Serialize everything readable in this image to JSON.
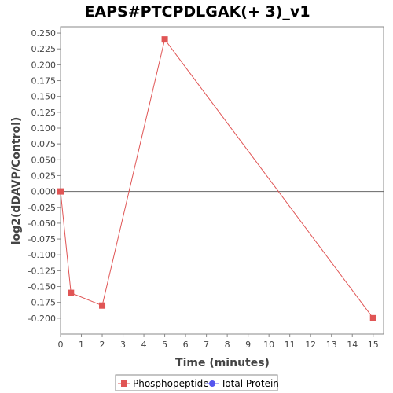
{
  "chart_data": {
    "type": "line",
    "title": "EAPS#PTCPDLGAK(+ 3)_v1",
    "xlabel": "Time (minutes)",
    "ylabel": "log2(dDAVP/Control)",
    "xlim": [
      0,
      15.5
    ],
    "ylim": [
      -0.225,
      0.26
    ],
    "x_ticks": [
      0,
      1,
      2,
      3,
      4,
      5,
      6,
      7,
      8,
      9,
      10,
      11,
      12,
      13,
      14,
      15
    ],
    "x_tick_labels": [
      "0",
      "1",
      "2",
      "3",
      "4",
      "5",
      "6",
      "7",
      "8",
      "9",
      "10",
      "11",
      "12",
      "13",
      "14",
      "15"
    ],
    "y_ticks": [
      0.25,
      0.225,
      0.2,
      0.175,
      0.15,
      0.125,
      0.1,
      0.075,
      0.05,
      0.025,
      0.0,
      -0.025,
      -0.05,
      -0.075,
      -0.1,
      -0.125,
      -0.15,
      -0.175,
      -0.2
    ],
    "y_tick_labels": [
      "0.250",
      "0.225",
      "0.200",
      "0.175",
      "0.150",
      "0.125",
      "0.100",
      "0.075",
      "0.050",
      "0.025",
      "0.000",
      "-0.025",
      "-0.050",
      "-0.075",
      "-0.100",
      "-0.125",
      "-0.150",
      "-0.175",
      "-0.200"
    ],
    "zero_line": true,
    "grid": false,
    "legend_position": "bottom",
    "series": [
      {
        "name": "Phosphopeptide",
        "color": "#e05555",
        "marker": "square",
        "x": [
          0,
          0.5,
          2,
          5,
          15
        ],
        "y": [
          0.0,
          -0.16,
          -0.18,
          0.24,
          -0.2
        ]
      },
      {
        "name": "Total Protein",
        "color": "#5555ee",
        "marker": "circle",
        "x": [],
        "y": []
      }
    ]
  }
}
